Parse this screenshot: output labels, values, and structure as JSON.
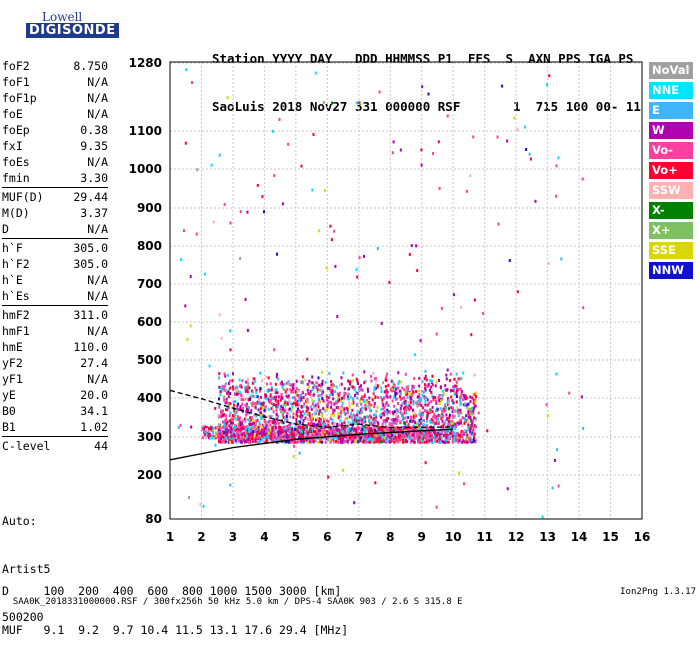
{
  "logo": {
    "brand": "Lowell",
    "product": "DIGISONDE"
  },
  "header": {
    "line1": "Station YYYY DAY   DDD HHMMSS P1  FFS  S  AXN PPS IGA PS",
    "line2": "SaoLuis 2018 Nov27 331 000000 RSF       1  715 100 00- 11"
  },
  "params": [
    {
      "group": [
        {
          "name": "foF2",
          "value": "8.750"
        },
        {
          "name": "foF1",
          "value": "N/A"
        },
        {
          "name": "foF1p",
          "value": "N/A"
        },
        {
          "name": "foE",
          "value": "N/A"
        },
        {
          "name": "foEp",
          "value": "0.38"
        },
        {
          "name": "fxI",
          "value": "9.35"
        },
        {
          "name": "foEs",
          "value": "N/A"
        },
        {
          "name": "fmin",
          "value": "3.30"
        }
      ]
    },
    {
      "group": [
        {
          "name": "MUF(D)",
          "value": "29.44"
        },
        {
          "name": "M(D)",
          "value": "3.37"
        },
        {
          "name": "D",
          "value": "N/A"
        }
      ]
    },
    {
      "group": [
        {
          "name": "h`F",
          "value": "305.0"
        },
        {
          "name": "h`F2",
          "value": "305.0"
        },
        {
          "name": "h`E",
          "value": "N/A"
        },
        {
          "name": "h`Es",
          "value": "N/A"
        }
      ]
    },
    {
      "group": [
        {
          "name": "hmF2",
          "value": "311.0"
        },
        {
          "name": "hmF1",
          "value": "N/A"
        },
        {
          "name": "hmE",
          "value": "110.0"
        },
        {
          "name": "yF2",
          "value": "27.4"
        },
        {
          "name": "yF1",
          "value": "N/A"
        },
        {
          "name": "yE",
          "value": "20.0"
        },
        {
          "name": "B0",
          "value": "34.1"
        },
        {
          "name": "B1",
          "value": "1.02"
        }
      ]
    },
    {
      "group": [
        {
          "name": "C-level",
          "value": "44"
        }
      ]
    }
  ],
  "auto": {
    "line1": "Auto:",
    "line2": "Artist5",
    "line3": "500200"
  },
  "legend": [
    {
      "label": "NoVal",
      "color": "#a0a0a0"
    },
    {
      "label": "NNE",
      "color": "#00e5ff"
    },
    {
      "label": "E",
      "color": "#3fb5ff"
    },
    {
      "label": "W",
      "color": "#b000b0"
    },
    {
      "label": "Vo-",
      "color": "#ff3fa0"
    },
    {
      "label": "Vo+",
      "color": "#ff0033"
    },
    {
      "label": "SSW",
      "color": "#ffb0b0"
    },
    {
      "label": "X-",
      "color": "#008000"
    },
    {
      "label": "X+",
      "color": "#80c060"
    },
    {
      "label": "SSE",
      "color": "#d8d800"
    },
    {
      "label": "NNW",
      "color": "#1010d0"
    }
  ],
  "dmuf": {
    "d_line": "D     100  200  400  600  800 1000 1500 3000 [km]",
    "muf_line": "MUF   9.1  9.2  9.7 10.4 11.5 13.1 17.6 29.4 [MHz]"
  },
  "footer": {
    "text": "SAA0K_2018331000000.RSF / 300fx256h 50 kHz 5.0 km / DPS-4 SAA0K 903 / 2.6 S 315.8 E",
    "version": "Ion2Png 1.3.17"
  },
  "chart_data": {
    "type": "scatter",
    "xlim": [
      1,
      16
    ],
    "ylim": [
      80,
      1280
    ],
    "x_ticks": [
      1,
      2,
      3,
      4,
      5,
      6,
      7,
      8,
      9,
      10,
      11,
      12,
      13,
      14,
      15,
      16
    ],
    "y_ticks": [
      80,
      200,
      300,
      400,
      500,
      600,
      700,
      800,
      900,
      1000,
      1100,
      1280
    ],
    "grid": true,
    "legend_position": "right",
    "reflection_region": {
      "x_start": 2.5,
      "x_end": 10.7,
      "h_min": 290,
      "h_max": 480
    },
    "trace_lower": [
      [
        1,
        240
      ],
      [
        3,
        272
      ],
      [
        5,
        294
      ],
      [
        7,
        307
      ],
      [
        9,
        316
      ],
      [
        10,
        320
      ]
    ],
    "trace_upper": [
      [
        1,
        420
      ],
      [
        2,
        398
      ],
      [
        3,
        374
      ],
      [
        4,
        352
      ],
      [
        5,
        333
      ],
      [
        6,
        325
      ],
      [
        7,
        333
      ],
      [
        8,
        324
      ],
      [
        9,
        325
      ],
      [
        10,
        326
      ]
    ]
  }
}
